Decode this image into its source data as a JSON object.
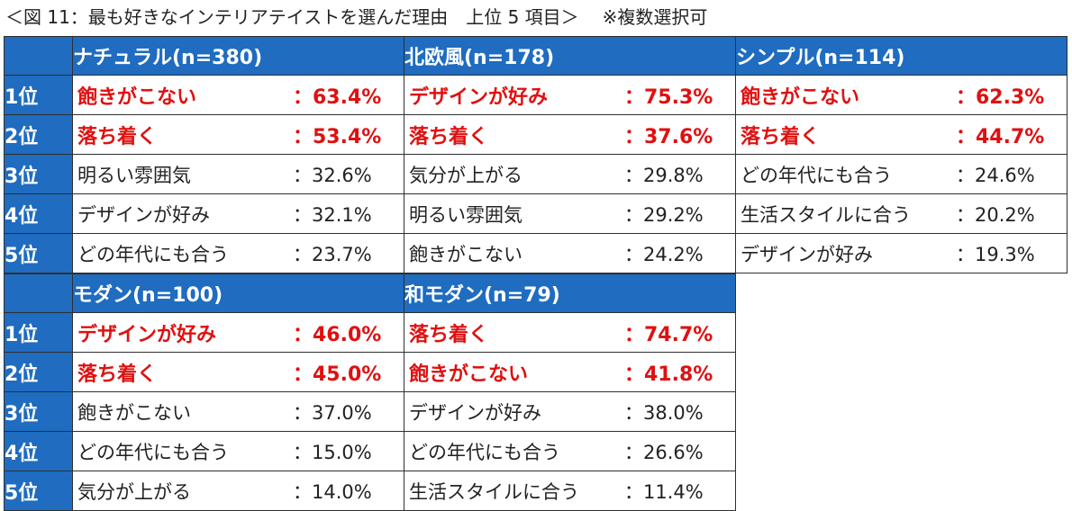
{
  "caption": {
    "title": "＜図 11：最も好きなインテリアテイストを選んだ理由　上位 5 項目＞",
    "note": "※複数選択可"
  },
  "highlight_color": "#e01010",
  "header_color": "#1f6cc0",
  "top_table": {
    "columns": [
      {
        "header": "ナチュラル(n=380)",
        "rows": [
          {
            "rank": "1位",
            "label": "飽きがこない",
            "value": "：63.4%",
            "highlight": true
          },
          {
            "rank": "2位",
            "label": "落ち着く",
            "value": "：53.4%",
            "highlight": true
          },
          {
            "rank": "3位",
            "label": "明るい雰囲気",
            "value": "：32.6%",
            "highlight": false
          },
          {
            "rank": "4位",
            "label": "デザインが好み",
            "value": "：32.1%",
            "highlight": false
          },
          {
            "rank": "5位",
            "label": "どの年代にも合う",
            "value": "：23.7%",
            "highlight": false
          }
        ]
      },
      {
        "header": "北欧風(n=178)",
        "rows": [
          {
            "label": "デザインが好み",
            "value": "：75.3%",
            "highlight": true
          },
          {
            "label": "落ち着く",
            "value": "：37.6%",
            "highlight": true
          },
          {
            "label": "気分が上がる",
            "value": "：29.8%",
            "highlight": false
          },
          {
            "label": "明るい雰囲気",
            "value": "：29.2%",
            "highlight": false
          },
          {
            "label": "飽きがこない",
            "value": "：24.2%",
            "highlight": false
          }
        ]
      },
      {
        "header": "シンプル(n=114)",
        "rows": [
          {
            "label": "飽きがこない",
            "value": "：62.3%",
            "highlight": true
          },
          {
            "label": "落ち着く",
            "value": "：44.7%",
            "highlight": true
          },
          {
            "label": "どの年代にも合う",
            "value": "：24.6%",
            "highlight": false
          },
          {
            "label": "生活スタイルに合う",
            "value": "：20.2%",
            "highlight": false
          },
          {
            "label": "デザインが好み",
            "value": "：19.3%",
            "highlight": false
          }
        ]
      }
    ]
  },
  "bottom_table": {
    "columns": [
      {
        "header": "モダン(n=100)",
        "rows": [
          {
            "rank": "1位",
            "label": "デザインが好み",
            "value": "：46.0%",
            "highlight": true
          },
          {
            "rank": "2位",
            "label": "落ち着く",
            "value": "：45.0%",
            "highlight": true
          },
          {
            "rank": "3位",
            "label": "飽きがこない",
            "value": "：37.0%",
            "highlight": false
          },
          {
            "rank": "4位",
            "label": "どの年代にも合う",
            "value": "：15.0%",
            "highlight": false
          },
          {
            "rank": "5位",
            "label": "気分が上がる",
            "value": "：14.0%",
            "highlight": false
          }
        ]
      },
      {
        "header": "和モダン(n=79)",
        "rows": [
          {
            "label": "落ち着く",
            "value": "：74.7%",
            "highlight": true
          },
          {
            "label": "飽きがこない",
            "value": "：41.8%",
            "highlight": true
          },
          {
            "label": "デザインが好み",
            "value": "：38.0%",
            "highlight": false
          },
          {
            "label": "どの年代にも合う",
            "value": "：26.6%",
            "highlight": false
          },
          {
            "label": "生活スタイルに合う",
            "value": "：11.4%",
            "highlight": false
          }
        ]
      }
    ]
  }
}
